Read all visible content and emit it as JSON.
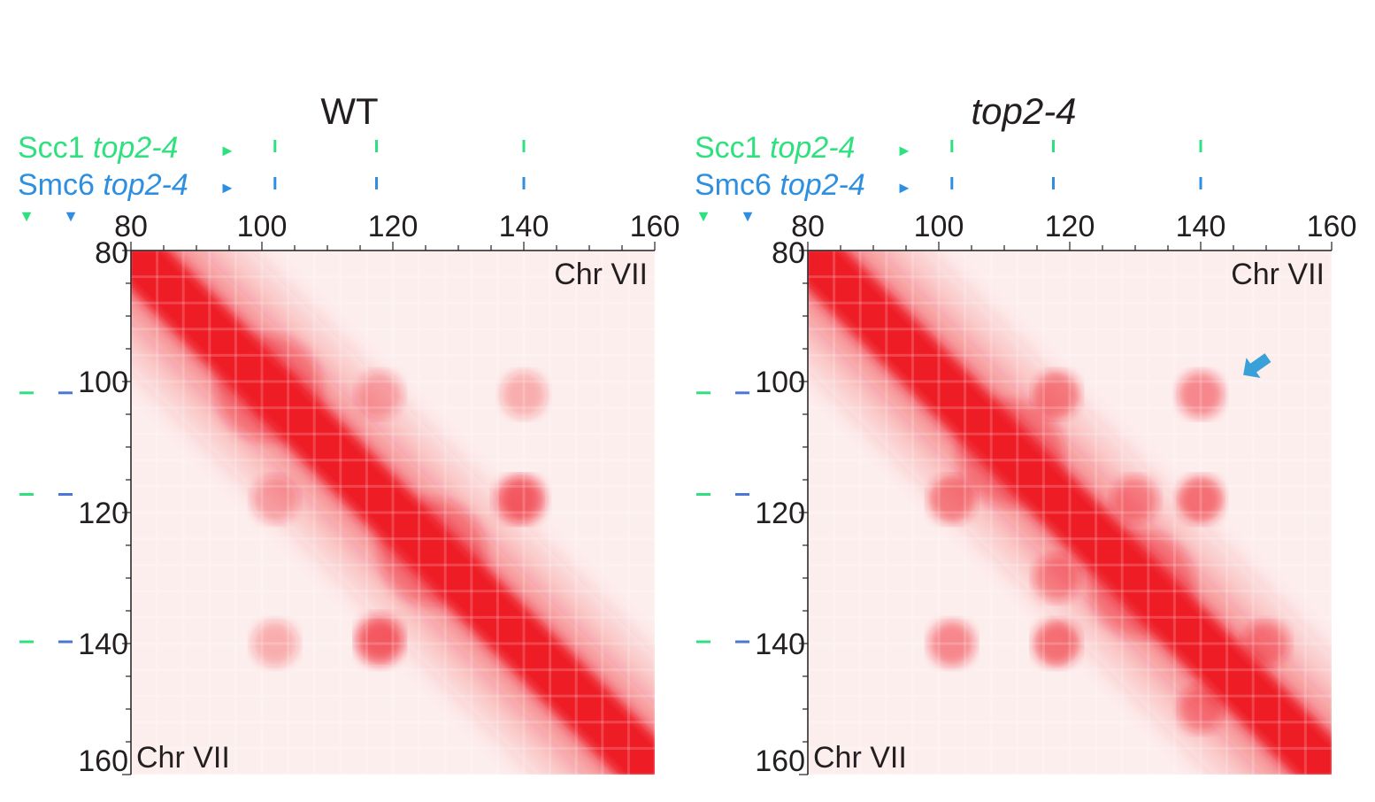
{
  "colors": {
    "scc1": "#2fe07f",
    "smc6": "#2e8fe0",
    "smc6_dash": "#4a77d6",
    "heat": "#ee1c25",
    "axis": "#231f20",
    "arrow": "#3aa0d8"
  },
  "chart_data": [
    {
      "type": "heatmap",
      "title": "WT",
      "title_style": "normal",
      "chromosome_label": "Chr VII",
      "x_ticks": [
        "80",
        "100",
        "120",
        "140",
        "160"
      ],
      "y_ticks": [
        "80",
        "100",
        "120",
        "140",
        "160"
      ],
      "xlim": [
        80,
        160
      ],
      "ylim": [
        80,
        160
      ],
      "tracks": [
        {
          "name": "Scc1",
          "italic_suffix": "top2-4",
          "marker": "►",
          "positions": [
            102,
            117.5,
            140
          ]
        },
        {
          "name": "Smc6",
          "italic_suffix": "top2-4",
          "marker": "►",
          "positions": [
            102,
            117.5,
            140
          ]
        }
      ],
      "side_markers": [
        "▼",
        "▼"
      ],
      "side_positions": [
        102,
        117.5,
        140
      ],
      "diagonal_peaks": [
        [
          100,
          102
        ],
        [
          125,
          127
        ]
      ],
      "offdiag_spots": [
        [
          118,
          139,
          0.5
        ],
        [
          102,
          140,
          0.25
        ],
        [
          102,
          118,
          0.3
        ],
        [
          118,
          140,
          0.55
        ],
        [
          102,
          102,
          0.2
        ]
      ],
      "arrow": false
    },
    {
      "type": "heatmap",
      "title": "top2-4",
      "title_style": "italic",
      "chromosome_label": "Chr VII",
      "x_ticks": [
        "80",
        "100",
        "120",
        "140",
        "160"
      ],
      "y_ticks": [
        "80",
        "100",
        "120",
        "140",
        "160"
      ],
      "xlim": [
        80,
        160
      ],
      "ylim": [
        80,
        160
      ],
      "tracks": [
        {
          "name": "Scc1",
          "italic_suffix": "top2-4",
          "marker": "►",
          "positions": [
            102,
            117.5,
            140
          ]
        },
        {
          "name": "Smc6",
          "italic_suffix": "top2-4",
          "marker": "►",
          "positions": [
            102,
            117.5,
            140
          ]
        }
      ],
      "side_markers": [
        "▼",
        "▼"
      ],
      "side_positions": [
        102,
        117.5,
        140
      ],
      "diagonal_peaks": [
        [
          110,
          112
        ],
        [
          130,
          132
        ]
      ],
      "offdiag_spots": [
        [
          102,
          140,
          0.6
        ],
        [
          118,
          140,
          0.85
        ],
        [
          102,
          118,
          0.7
        ],
        [
          118,
          130,
          0.5
        ],
        [
          140,
          150,
          0.5
        ]
      ],
      "arrow": true
    }
  ]
}
